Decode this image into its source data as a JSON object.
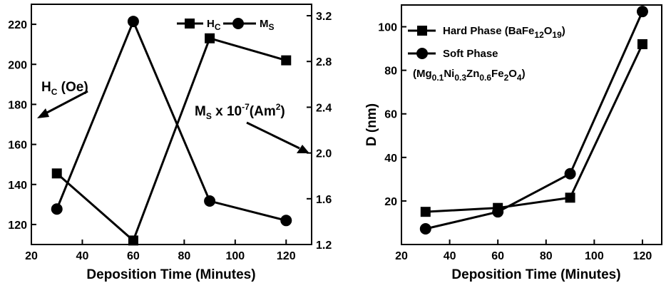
{
  "chart_data": [
    {
      "type": "line",
      "xlabel": "Deposition Time (Minutes)",
      "ylabel": "",
      "y2label": "",
      "xlim": [
        20,
        130
      ],
      "ylim": [
        110,
        230
      ],
      "y2lim": [
        1.2,
        3.3
      ],
      "xticks": [
        "20",
        "40",
        "60",
        "80",
        "100",
        "120"
      ],
      "yticks": [
        "120",
        "140",
        "160",
        "180",
        "200",
        "220"
      ],
      "y2ticks": [
        "1.2",
        "1.6",
        "2.0",
        "2.4",
        "2.8",
        "3.2"
      ],
      "grid": false,
      "legend_position": "top-right",
      "series": [
        {
          "name": "H_C",
          "axis": "left",
          "marker": "square",
          "x": [
            30,
            60,
            90,
            120
          ],
          "y": [
            145.5,
            112,
            213,
            202
          ]
        },
        {
          "name": "M_S",
          "axis": "right",
          "marker": "circle",
          "x": [
            30,
            60,
            90,
            120
          ],
          "y": [
            1.51,
            3.15,
            1.58,
            1.41
          ]
        }
      ],
      "annotations": [
        {
          "text": "H_C (Oe)",
          "arrow_to": "left-axis"
        },
        {
          "text": "M_S x 10^-7(Am^2)",
          "arrow_to": "right-axis"
        }
      ]
    },
    {
      "type": "line",
      "xlabel": "Deposition Time (Minutes)",
      "ylabel": "D (nm)",
      "xlim": [
        20,
        128
      ],
      "ylim": [
        0,
        110
      ],
      "xticks": [
        "20",
        "40",
        "60",
        "80",
        "100",
        "120"
      ],
      "yticks": [
        "20",
        "40",
        "60",
        "80",
        "100"
      ],
      "grid": false,
      "legend_position": "top-left",
      "series": [
        {
          "name": "Hard Phase (BaFe12O19)",
          "marker": "square",
          "x": [
            30,
            60,
            90,
            120
          ],
          "y": [
            15,
            16.8,
            21.5,
            92
          ]
        },
        {
          "name": "Soft Phase (Mg0.1Ni0.3Zn0.6Fe2O4)",
          "marker": "circle",
          "x": [
            30,
            60,
            90,
            120
          ],
          "y": [
            7.2,
            15,
            32.5,
            107
          ]
        }
      ]
    }
  ],
  "text": {
    "hc_main": "H",
    "hc_sub": "C",
    "ms_main": "M",
    "ms_sub": "S",
    "oe_suffix": " (Oe)",
    "ms_mid": " x 10",
    "ms_exp": "-7",
    "ms_unit": "(Am",
    "ms_unit_exp": "2",
    "ms_close": ")",
    "hard_phase": "Hard Phase (BaFe",
    "hard_sub1": "12",
    "hard_o": "O",
    "hard_sub2": "19",
    "hard_close": ")",
    "soft_phase": "Soft Phase",
    "soft_paren": "(Mg",
    "soft_s1": "0.1",
    "soft_ni": "Ni",
    "soft_s2": "0.3",
    "soft_zn": "Zn",
    "soft_s3": "0.6",
    "soft_fe": "Fe",
    "soft_s4": "2",
    "soft_o": "O",
    "soft_s5": "4",
    "soft_close": ")"
  }
}
